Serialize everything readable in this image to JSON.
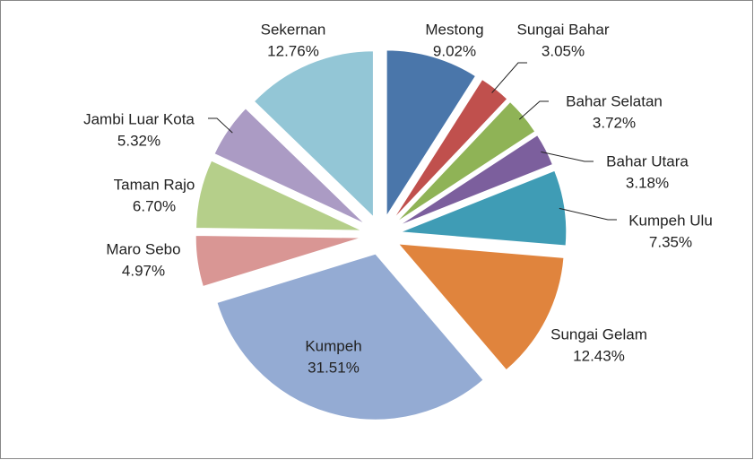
{
  "chart_data": {
    "type": "pie",
    "categories": [
      "Mestong",
      "Sungai Bahar",
      "Bahar Selatan",
      "Bahar Utara",
      "Kumpeh Ulu",
      "Sungai Gelam",
      "Kumpeh",
      "Maro Sebo",
      "Taman Rajo",
      "Jambi Luar Kota",
      "Sekernan"
    ],
    "values": [
      9.02,
      3.05,
      3.72,
      3.18,
      7.35,
      12.43,
      31.51,
      4.97,
      6.7,
      5.32,
      12.76
    ],
    "value_labels": [
      "9.02%",
      "3.05%",
      "3.72%",
      "3.18%",
      "7.35%",
      "12.43%",
      "31.51%",
      "4.97%",
      "6.70%",
      "5.32%",
      "12.76%"
    ],
    "colors": [
      "#4a76aa",
      "#c0504d",
      "#8fb356",
      "#7c5f9d",
      "#3f9cb5",
      "#e0843d",
      "#94abd3",
      "#d99694",
      "#b5cf8a",
      "#ab9bc4",
      "#93c6d6"
    ]
  }
}
